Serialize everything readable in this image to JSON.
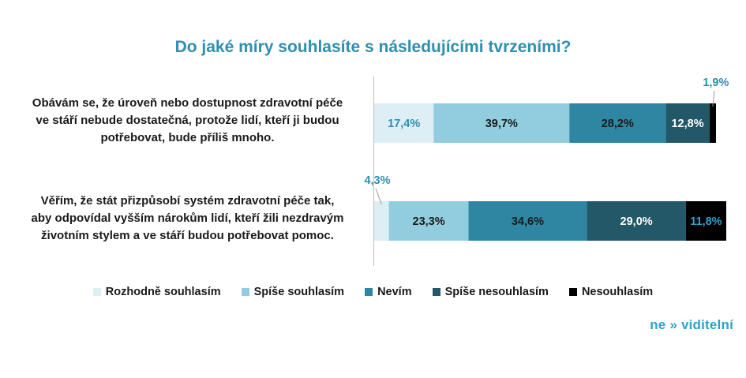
{
  "title": "Do jaké míry souhlasíte s následujícími tvrzeními?",
  "chart_data": {
    "type": "bar",
    "orientation": "horizontal",
    "stacked": true,
    "percent": true,
    "categories": [
      "Obávám se, že úroveň nebo dostupnost zdravotní péče ve stáří nebude dostatečná, protože lidí, kteří ji budou potřebovat, bude příliš mnoho.",
      "Věřím, že stát přizpůsobí systém zdravotní péče tak, aby odpovídal vyšším nárokům lidí, kteří žili nezdravým životním stylem a ve stáří budou potřebovat pomoc."
    ],
    "category_lines": [
      [
        "Obávám se, že úroveň nebo dostupnost zdravotní péče",
        "ve stáří nebude dostatečná, protože lidí, kteří ji budou",
        "potřebovat, bude příliš mnoho."
      ],
      [
        "Věřím, že stát přizpůsobí systém zdravotní péče tak,",
        "aby odpovídal vyšším nárokům lidí, kteří žili nezdravým",
        "životním stylem a ve stáří budou potřebovat pomoc."
      ]
    ],
    "series": [
      {
        "name": "Rozhodně souhlasím",
        "values": [
          17.4,
          4.3
        ],
        "labels": [
          "17,4%",
          "4,3%"
        ],
        "color": "#ddeef5",
        "label_color": "#2e8fb0"
      },
      {
        "name": "Spíše souhlasím",
        "values": [
          39.7,
          23.3
        ],
        "labels": [
          "39,7%",
          "23,3%"
        ],
        "color": "#92cddf",
        "label_color": "#1a1a1a"
      },
      {
        "name": "Nevím",
        "values": [
          28.2,
          34.6
        ],
        "labels": [
          "28,2%",
          "34,6%"
        ],
        "color": "#2e86a3",
        "label_color": "#1a1a1a"
      },
      {
        "name": "Spíše nesouhlasím",
        "values": [
          12.8,
          29.0
        ],
        "labels": [
          "12,8%",
          "29,0%"
        ],
        "color": "#225868",
        "label_color": "#ffffff"
      },
      {
        "name": "Nesouhlasím",
        "values": [
          1.9,
          11.8
        ],
        "labels": [
          "1,9%",
          "11,8%"
        ],
        "color": "#000000",
        "label_color": "#2ea3c9"
      }
    ],
    "xlim": [
      0,
      100
    ],
    "legend_position": "bottom"
  },
  "logo": "ne » viditelní"
}
